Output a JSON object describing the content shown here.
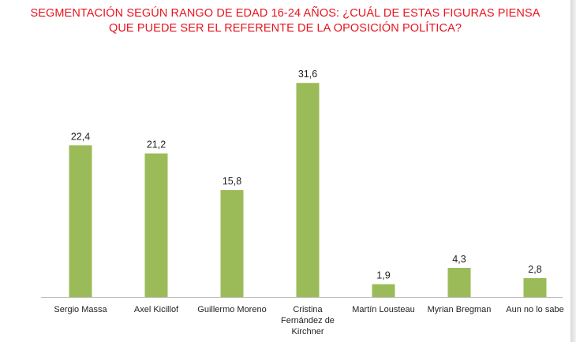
{
  "chart_data": {
    "type": "bar",
    "title_lines": [
      "SEGMENTACIÓN SEGÚN RANGO DE EDAD 16-24 AÑOS: ¿CUÁL DE ESTAS FIGURAS PIENSA",
      "QUE PUEDE SER EL REFERENTE DE LA OPOSICIÓN POLÍTICA?"
    ],
    "categories": [
      "Sergio Massa",
      "Axel Kicillof",
      "Guillermo Moreno",
      "Cristina Fernández de Kirchner",
      "Martín Lousteau",
      "Myrian Bregman",
      "Aun no lo sabe"
    ],
    "values": [
      22.4,
      21.2,
      15.8,
      31.6,
      1.9,
      4.3,
      2.8
    ],
    "data_labels": [
      "22,4",
      "21,2",
      "15,8",
      "31,6",
      "1,9",
      "4,3",
      "2,8"
    ],
    "bar_color": "#9bbb59",
    "title_color": "#e8141e",
    "ylim": [
      0,
      35
    ],
    "grid": false,
    "legend": "none"
  }
}
